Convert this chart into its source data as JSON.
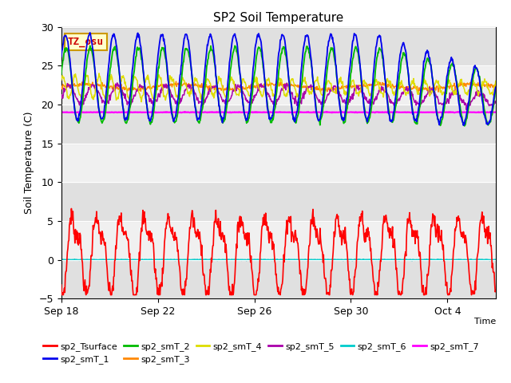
{
  "title": "SP2 Soil Temperature",
  "ylabel": "Soil Temperature (C)",
  "xlabel": "Time",
  "ylim": [
    -5,
    30
  ],
  "xlim_days": [
    0,
    18
  ],
  "x_ticks_days": [
    0,
    4,
    8,
    12,
    16
  ],
  "x_tick_labels": [
    "Sep 18",
    "Sep 22",
    "Sep 26",
    "Sep 30",
    "Oct 4"
  ],
  "yticks": [
    -5,
    0,
    5,
    10,
    15,
    20,
    25,
    30
  ],
  "colors": {
    "sp2_Tsurface": "#ff0000",
    "sp2_smT_1": "#0000ee",
    "sp2_smT_2": "#00bb00",
    "sp2_smT_3": "#ff8800",
    "sp2_smT_4": "#dddd00",
    "sp2_smT_5": "#aa00aa",
    "sp2_smT_6": "#00cccc",
    "sp2_smT_7": "#ff00ff"
  },
  "annotation_text": "TZ_osu",
  "annotation_color": "#cc0000",
  "annotation_bg": "#ffffcc",
  "annotation_border": "#cc9900",
  "bg_bands": [
    {
      "ymin": -5,
      "ymax": 0,
      "color": "#e0e0e0"
    },
    {
      "ymin": 0,
      "ymax": 5,
      "color": "#f0f0f0"
    },
    {
      "ymin": 5,
      "ymax": 10,
      "color": "#e0e0e0"
    },
    {
      "ymin": 10,
      "ymax": 15,
      "color": "#f0f0f0"
    },
    {
      "ymin": 15,
      "ymax": 20,
      "color": "#e0e0e0"
    },
    {
      "ymin": 20,
      "ymax": 25,
      "color": "#f0f0f0"
    },
    {
      "ymin": 25,
      "ymax": 30,
      "color": "#e0e0e0"
    }
  ]
}
